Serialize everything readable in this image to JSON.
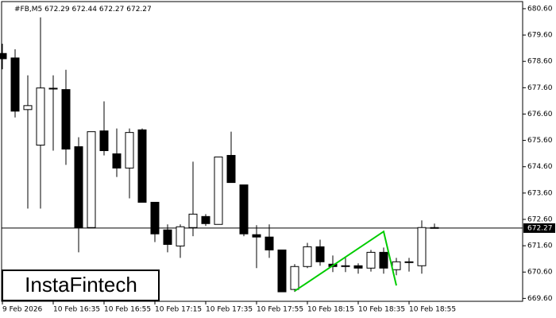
{
  "chart_data": {
    "type": "candlestick",
    "symbol": "#FB,M5",
    "brand": "InstaFintech",
    "categories": [
      "9 Feb 2026",
      null,
      null,
      null,
      "10 Feb 16:35",
      null,
      null,
      null,
      "10 Feb 16:55",
      null,
      null,
      null,
      "10 Feb 17:15",
      null,
      null,
      null,
      "10 Feb 17:35",
      null,
      null,
      null,
      "10 Feb 17:55",
      null,
      null,
      null,
      "10 Feb 18:15",
      null,
      null,
      null,
      "10 Feb 18:35",
      null,
      null,
      null,
      "10 Feb 18:55",
      null,
      null
    ],
    "open": [
      678.9,
      678.73,
      676.77,
      675.42,
      677.58,
      677.53,
      675.36,
      672.29,
      675.96,
      675.09,
      674.55,
      676.0,
      673.25,
      672.2,
      671.59,
      672.29,
      672.71,
      672.41,
      675.03,
      673.91,
      672.02,
      671.93,
      671.44,
      669.94,
      670.81,
      671.56,
      670.9,
      670.84,
      670.84,
      670.75,
      671.35,
      670.69,
      670.99,
      670.84,
      672.29
    ],
    "high": [
      679.27,
      679.06,
      678.07,
      680.27,
      678.07,
      678.28,
      675.72,
      675.93,
      677.08,
      676.05,
      676.05,
      676.05,
      673.25,
      672.41,
      672.41,
      674.79,
      672.8,
      674.97,
      675.93,
      673.91,
      672.38,
      672.41,
      671.44,
      670.9,
      671.71,
      671.83,
      671.23,
      671.14,
      670.93,
      671.44,
      671.53,
      671.14,
      671.14,
      672.56,
      672.44
    ],
    "low": [
      678.3,
      676.47,
      673.01,
      673.01,
      675.21,
      674.67,
      671.35,
      672.29,
      675.03,
      674.21,
      673.4,
      673.25,
      671.74,
      671.35,
      671.14,
      671.96,
      672.35,
      672.41,
      674.0,
      671.96,
      670.75,
      671.14,
      669.85,
      669.85,
      670.75,
      670.84,
      670.6,
      670.6,
      670.54,
      670.62,
      670.54,
      670.48,
      670.62,
      670.54,
      672.27
    ],
    "close": [
      678.7,
      676.71,
      676.92,
      677.59,
      677.55,
      675.27,
      672.29,
      675.93,
      675.21,
      674.55,
      675.9,
      673.25,
      672.05,
      671.65,
      672.32,
      672.8,
      672.44,
      674.97,
      674.0,
      672.05,
      671.93,
      671.44,
      669.85,
      670.81,
      671.56,
      670.99,
      670.81,
      670.84,
      670.75,
      671.35,
      670.75,
      670.99,
      670.99,
      672.29,
      672.27
    ],
    "pattern": {
      "color": "#00cc00",
      "x": [
        23,
        30,
        31
      ],
      "values": [
        669.88,
        672.14,
        670.09
      ]
    },
    "ylim": [
      669.49,
      680.87
    ],
    "yticks": [
      {
        "value": 680.6,
        "label": "680.60"
      },
      {
        "value": 679.6,
        "label": "679.60"
      },
      {
        "value": 678.6,
        "label": "678.60"
      },
      {
        "value": 677.6,
        "label": "677.60"
      },
      {
        "value": 676.6,
        "label": "676.60"
      },
      {
        "value": 675.6,
        "label": "675.60"
      },
      {
        "value": 674.6,
        "label": "674.60"
      },
      {
        "value": 673.6,
        "label": "673.60"
      },
      {
        "value": 672.6,
        "label": "672.60"
      },
      {
        "value": 671.6,
        "label": "671.60"
      },
      {
        "value": 670.6,
        "label": "670.60"
      },
      {
        "value": 669.6,
        "label": "669.60"
      }
    ]
  }
}
